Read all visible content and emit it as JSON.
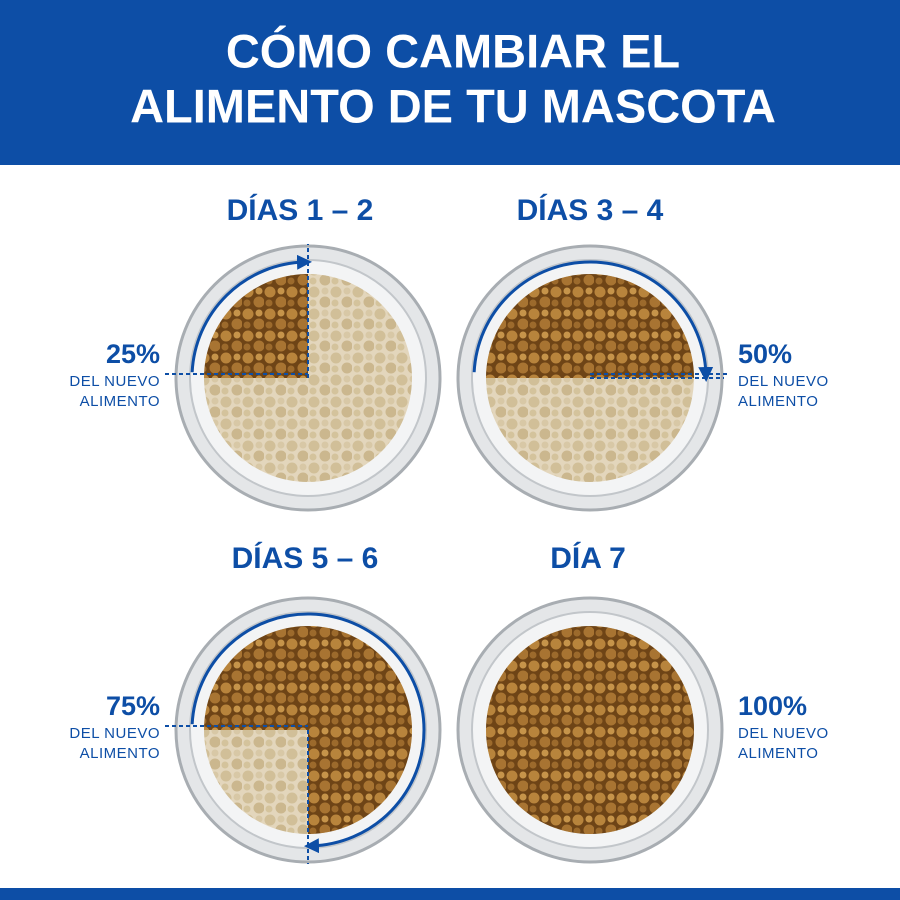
{
  "header": {
    "title_lines": [
      "CÓMO CAMBIAR EL",
      "ALIMENTO DE TU MASCOTA"
    ]
  },
  "panels": [
    {
      "days": "DÍAS 1 – 2",
      "percent": {
        "value": 25,
        "label": "25%"
      },
      "caption_lines": [
        "DEL NUEVO",
        "ALIMENTO"
      ]
    },
    {
      "days": "DÍAS 3 – 4",
      "percent": {
        "value": 50,
        "label": "50%"
      },
      "caption_lines": [
        "DEL NUEVO",
        "ALIMENTO"
      ]
    },
    {
      "days": "DÍAS 5 – 6",
      "percent": {
        "value": 75,
        "label": "75%"
      },
      "caption_lines": [
        "DEL NUEVO",
        "ALIMENTO"
      ]
    },
    {
      "days": "DÍA 7",
      "percent": {
        "value": 100,
        "label": "100%"
      },
      "caption_lines": [
        "DEL NUEVO",
        "ALIMENTO"
      ]
    }
  ]
}
